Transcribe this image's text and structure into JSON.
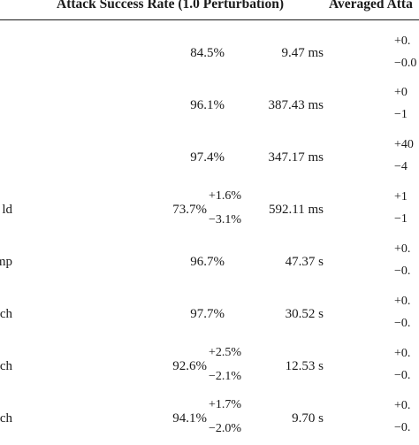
{
  "table": {
    "headers": {
      "asr": "Attack Success Rate (1.0 Perturbation)",
      "time": "Averaged Atta"
    },
    "rows": [
      {
        "method": "",
        "asr": "84.5%",
        "asr_plus": "",
        "asr_minus": "",
        "time": "9.47 ms",
        "time_plus": "+0.",
        "time_minus": "−0.0"
      },
      {
        "method": "",
        "asr": "96.1%",
        "asr_plus": "",
        "asr_minus": "",
        "time": "387.43 ms",
        "time_plus": "+0",
        "time_minus": "−1"
      },
      {
        "method": "",
        "asr": "97.4%",
        "asr_plus": "",
        "asr_minus": "",
        "time": "347.17 ms",
        "time_plus": "+40",
        "time_minus": "−4"
      },
      {
        "method": "ld",
        "asr": "73.7%",
        "asr_plus": "+1.6%",
        "asr_minus": "−3.1%",
        "time": "592.11 ms",
        "time_plus": "+1",
        "time_minus": "−1"
      },
      {
        "method": "Jump",
        "asr": "96.7%",
        "asr_plus": "",
        "asr_minus": "",
        "time": "47.37 s",
        "time_plus": "+0.",
        "time_minus": "−0."
      },
      {
        "method": "arch",
        "asr": "97.7%",
        "asr_plus": "",
        "asr_minus": "",
        "time": "30.52 s",
        "time_plus": "+0.",
        "time_minus": "−0."
      },
      {
        "method": "ch",
        "asr": "92.6%",
        "asr_plus": "+2.5%",
        "asr_minus": "−2.1%",
        "time": "12.53 s",
        "time_plus": "+0.",
        "time_minus": "−0."
      },
      {
        "method": "rch",
        "asr": "94.1%",
        "asr_plus": "+1.7%",
        "asr_minus": "−2.0%",
        "time": "9.70 s",
        "time_plus": "+0.",
        "time_minus": "−0."
      }
    ]
  }
}
